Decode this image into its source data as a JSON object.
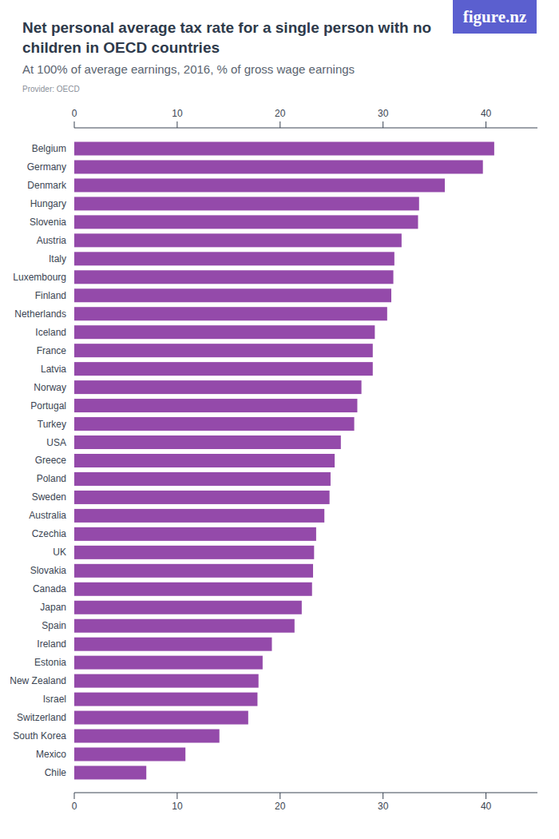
{
  "chart_data": {
    "type": "bar",
    "orientation": "horizontal",
    "title": "Net personal average tax rate for a single person with no children in OECD countries",
    "subtitle": "At 100% of average earnings, 2016, % of gross wage earnings",
    "source": "Provider: OECD",
    "logo": "figure.nz",
    "categories": [
      "Belgium",
      "Germany",
      "Denmark",
      "Hungary",
      "Slovenia",
      "Austria",
      "Italy",
      "Luxembourg",
      "Finland",
      "Netherlands",
      "Iceland",
      "France",
      "Latvia",
      "Norway",
      "Portugal",
      "Turkey",
      "USA",
      "Greece",
      "Poland",
      "Sweden",
      "Australia",
      "Czechia",
      "UK",
      "Slovakia",
      "Canada",
      "Japan",
      "Spain",
      "Ireland",
      "Estonia",
      "New Zealand",
      "Israel",
      "Switzerland",
      "South Korea",
      "Mexico",
      "Chile"
    ],
    "values": [
      40.8,
      39.7,
      36.0,
      33.5,
      33.4,
      31.8,
      31.1,
      31.0,
      30.8,
      30.4,
      29.2,
      29.0,
      29.0,
      27.9,
      27.5,
      27.2,
      25.9,
      25.3,
      24.9,
      24.8,
      24.3,
      23.5,
      23.3,
      23.2,
      23.1,
      22.1,
      21.4,
      19.2,
      18.3,
      17.9,
      17.8,
      16.9,
      14.1,
      10.8,
      7.0
    ],
    "color": "#944aaa",
    "xlim": [
      0,
      45
    ],
    "xticks": [
      0,
      10,
      20,
      30,
      40
    ],
    "grid": false
  }
}
